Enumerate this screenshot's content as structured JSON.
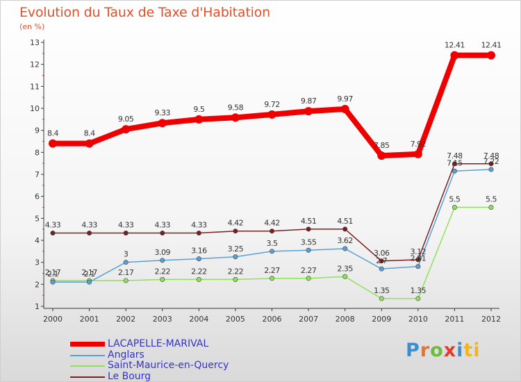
{
  "chart_data": {
    "type": "line",
    "title": "Evolution du Taux de Taxe d'Habitation",
    "subtitle": "(en %)",
    "x": [
      "2000",
      "2001",
      "2002",
      "2003",
      "2004",
      "2005",
      "2006",
      "2007",
      "2008",
      "2009",
      "2010",
      "2011",
      "2012"
    ],
    "ylim": [
      1,
      13
    ],
    "yticks": [
      1,
      2,
      3,
      4,
      5,
      6,
      7,
      8,
      9,
      10,
      11,
      12,
      13
    ],
    "grid": false,
    "legend_position": "bottom-left",
    "series": [
      {
        "name": "LACAPELLE-MARIVAL",
        "color": "#ee0000",
        "values": [
          8.4,
          8.4,
          9.05,
          9.33,
          9.5,
          9.58,
          9.72,
          9.87,
          9.97,
          7.85,
          7.92,
          12.41,
          12.41
        ]
      },
      {
        "name": "Anglars",
        "color": "#5a9fd4",
        "values": [
          2.1,
          2.1,
          3,
          3.09,
          3.16,
          3.25,
          3.5,
          3.55,
          3.62,
          2.7,
          2.81,
          7.15,
          7.22
        ]
      },
      {
        "name": "Saint-Maurice-en-Quercy",
        "color": "#8fe05a",
        "values": [
          2.17,
          2.17,
          2.17,
          2.22,
          2.22,
          2.22,
          2.27,
          2.27,
          2.35,
          1.35,
          1.35,
          5.5,
          5.5
        ]
      },
      {
        "name": "Le Bourg",
        "color": "#7a1f1f",
        "values": [
          4.33,
          4.33,
          4.33,
          4.33,
          4.33,
          4.42,
          4.42,
          4.51,
          4.51,
          3.06,
          3.12,
          7.48,
          7.48
        ]
      }
    ]
  },
  "series_labels": [
    [
      "8.4",
      "8.4",
      "9.05",
      "9.33",
      "9.5",
      "9.58",
      "9.72",
      "9.87",
      "9.97",
      "7.85",
      "7.92",
      "12.41",
      "12.41"
    ],
    [
      "2.1",
      "2.1",
      "3",
      "3.09",
      "3.16",
      "3.25",
      "3.5",
      "3.55",
      "3.62",
      "2.7",
      "2.81",
      "7.15",
      "7.22"
    ],
    [
      "2.17",
      "2.17",
      "2.17",
      "2.22",
      "2.22",
      "2.22",
      "2.27",
      "2.27",
      "2.35",
      "1.35",
      "1.35",
      "5.5",
      "5.5"
    ],
    [
      "4.33",
      "4.33",
      "4.33",
      "4.33",
      "4.33",
      "4.42",
      "4.42",
      "4.51",
      "4.51",
      "3.06",
      "3.12",
      "7.48",
      "7.48"
    ]
  ],
  "logo_letters": [
    "P",
    "r",
    "o",
    "x",
    "i",
    "ti"
  ]
}
